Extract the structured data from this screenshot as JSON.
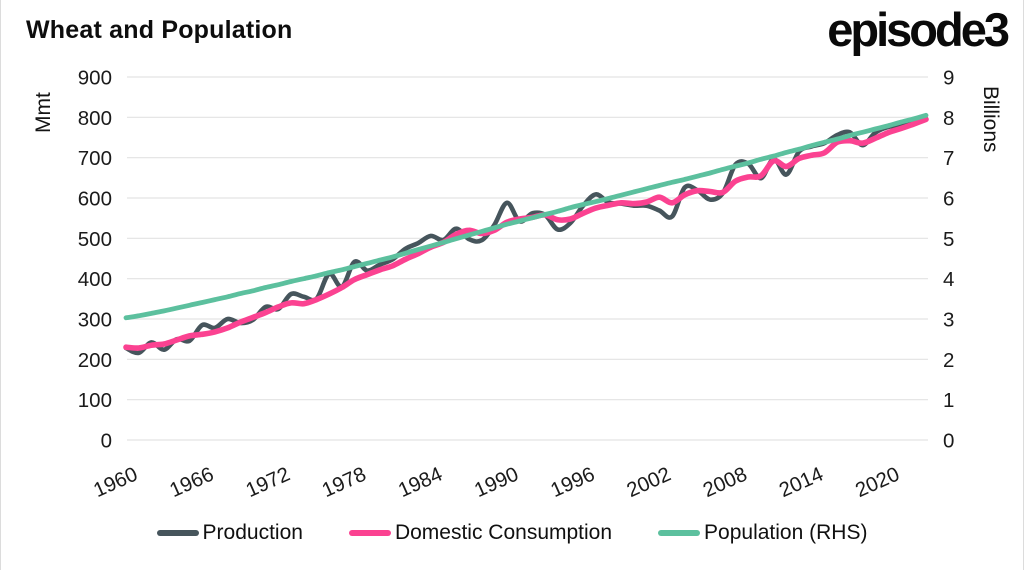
{
  "header": {
    "title": "Wheat and Population",
    "logo": "episode3"
  },
  "legend": {
    "items": [
      {
        "label": "Production",
        "color": "#46555c"
      },
      {
        "label": "Domestic Consumption",
        "color": "#fb4291"
      },
      {
        "label": "Population (RHS)",
        "color": "#5cc09e"
      }
    ]
  },
  "chart_data": {
    "type": "line",
    "title": "Wheat and Population",
    "grid": "horizontal",
    "legend_position": "bottom",
    "x": [
      1960,
      1961,
      1962,
      1963,
      1964,
      1965,
      1966,
      1967,
      1968,
      1969,
      1970,
      1971,
      1972,
      1973,
      1974,
      1975,
      1976,
      1977,
      1978,
      1979,
      1980,
      1981,
      1982,
      1983,
      1984,
      1985,
      1986,
      1987,
      1988,
      1989,
      1990,
      1991,
      1992,
      1993,
      1994,
      1995,
      1996,
      1997,
      1998,
      1999,
      2000,
      2001,
      2002,
      2003,
      2004,
      2005,
      2006,
      2007,
      2008,
      2009,
      2010,
      2011,
      2012,
      2013,
      2014,
      2015,
      2016,
      2017,
      2018,
      2019,
      2020,
      2021,
      2022,
      2023
    ],
    "x_ticks": [
      1960,
      1966,
      1972,
      1978,
      1984,
      1990,
      1996,
      2002,
      2008,
      2014,
      2020
    ],
    "left_axis": {
      "label": "Mmt",
      "range": [
        0,
        900
      ],
      "ticks": [
        0,
        100,
        200,
        300,
        400,
        500,
        600,
        700,
        800,
        900
      ]
    },
    "right_axis": {
      "label": "Billions",
      "range": [
        0,
        9
      ],
      "ticks": [
        0,
        1,
        2,
        3,
        4,
        5,
        6,
        7,
        8,
        9
      ]
    },
    "series": [
      {
        "name": "Production",
        "axis": "left",
        "color": "#46555c",
        "width": 4.6,
        "values": [
          228,
          216,
          242,
          224,
          250,
          246,
          285,
          278,
          300,
          290,
          298,
          330,
          325,
          362,
          355,
          350,
          412,
          380,
          442,
          420,
          435,
          448,
          474,
          488,
          506,
          496,
          524,
          498,
          495,
          533,
          588,
          542,
          562,
          558,
          522,
          538,
          581,
          609,
          589,
          586,
          581,
          581,
          569,
          554,
          626,
          619,
          596,
          612,
          683,
          685,
          649,
          697,
          658,
          715,
          728,
          736,
          756,
          763,
          731,
          762,
          776,
          780,
          789,
          797
        ]
      },
      {
        "name": "Domestic Consumption",
        "axis": "left",
        "color": "#fb4291",
        "width": 5.6,
        "values": [
          230,
          228,
          235,
          238,
          248,
          258,
          262,
          268,
          278,
          292,
          304,
          316,
          330,
          340,
          338,
          348,
          362,
          378,
          398,
          410,
          422,
          432,
          448,
          462,
          478,
          490,
          510,
          520,
          512,
          520,
          540,
          548,
          552,
          558,
          546,
          548,
          562,
          575,
          582,
          588,
          586,
          590,
          602,
          588,
          608,
          618,
          616,
          614,
          642,
          652,
          655,
          692,
          678,
          698,
          706,
          712,
          738,
          742,
          736,
          748,
          762,
          772,
          783,
          795
        ]
      },
      {
        "name": "Population (RHS)",
        "axis": "right",
        "color": "#5cc09e",
        "width": 4.8,
        "values": [
          3.03,
          3.08,
          3.14,
          3.2,
          3.27,
          3.34,
          3.41,
          3.48,
          3.55,
          3.63,
          3.7,
          3.78,
          3.85,
          3.93,
          4.0,
          4.07,
          4.15,
          4.22,
          4.3,
          4.38,
          4.46,
          4.54,
          4.63,
          4.72,
          4.81,
          4.9,
          4.99,
          5.08,
          5.17,
          5.26,
          5.35,
          5.43,
          5.51,
          5.59,
          5.67,
          5.76,
          5.84,
          5.91,
          5.99,
          6.07,
          6.15,
          6.23,
          6.31,
          6.39,
          6.46,
          6.54,
          6.62,
          6.71,
          6.79,
          6.87,
          6.96,
          7.04,
          7.13,
          7.21,
          7.3,
          7.38,
          7.46,
          7.55,
          7.63,
          7.71,
          7.79,
          7.88,
          7.96,
          8.05
        ]
      }
    ],
    "style": {
      "grid_color": "#e3e3e3",
      "tick_color": "#1b1b1b",
      "x_label_rotation": -24
    }
  }
}
